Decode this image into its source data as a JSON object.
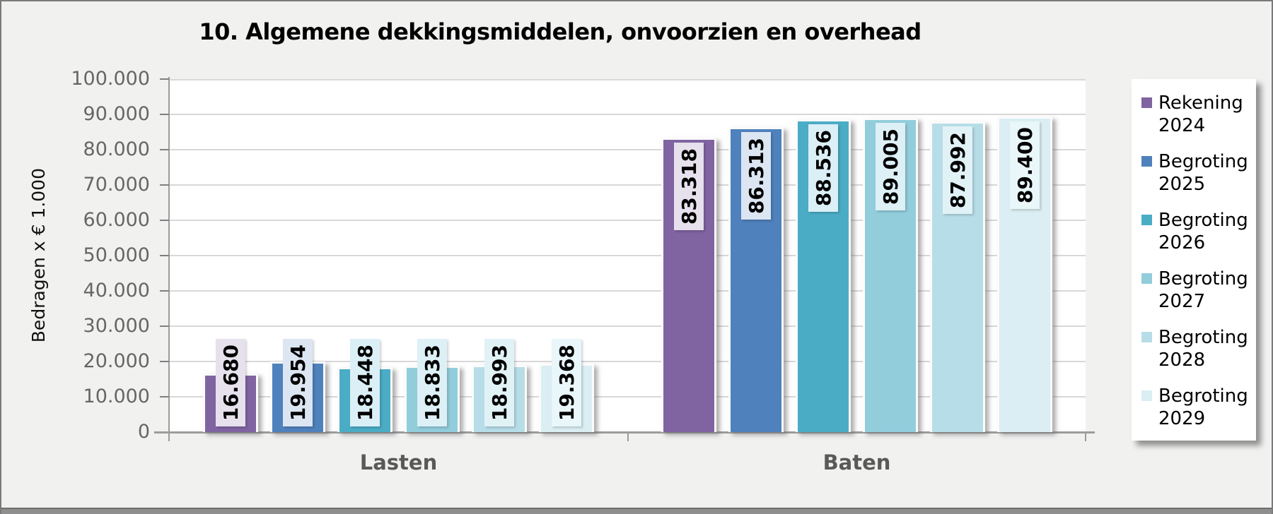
{
  "y_axis": {
    "label": "Bedragen x € 1.000",
    "ticks": [
      "100.000",
      "90.000",
      "80.000",
      "70.000",
      "60.000",
      "50.000",
      "40.000",
      "30.000",
      "20.000",
      "10.000",
      "0"
    ]
  },
  "chart_data": {
    "type": "bar",
    "title": "10. Algemene dekkingsmiddelen, onvoorzien en overhead",
    "xlabel": "",
    "ylabel": "Bedragen x € 1.000",
    "ylim": [
      0,
      100000
    ],
    "grid": true,
    "legend_position": "right",
    "categories": [
      "Lasten",
      "Baten"
    ],
    "series": [
      {
        "name": "Rekening 2024",
        "color": "#8064A2",
        "label_bg": "#E6E1ED",
        "values": [
          16680,
          83318
        ],
        "labels": [
          "16.680",
          "83.318"
        ]
      },
      {
        "name": "Begroting 2025",
        "color": "#4F81BD",
        "label_bg": "#DCE6F2",
        "values": [
          19954,
          86313
        ],
        "labels": [
          "19.954",
          "86.313"
        ]
      },
      {
        "name": "Begroting 2026",
        "color": "#4BACC6",
        "label_bg": "#DBEFF6",
        "values": [
          18448,
          88536
        ],
        "labels": [
          "18.448",
          "88.536"
        ]
      },
      {
        "name": "Begroting 2027",
        "color": "#92CDDC",
        "label_bg": "#DDF0F6",
        "values": [
          18833,
          89005
        ],
        "labels": [
          "18.833",
          "89.005"
        ]
      },
      {
        "name": "Begroting 2028",
        "color": "#B7DEE8",
        "label_bg": "#E1F2F7",
        "values": [
          18993,
          87992
        ],
        "labels": [
          "18.993",
          "87.992"
        ]
      },
      {
        "name": "Begroting 2029",
        "color": "#DAEEF3",
        "label_bg": "#E9F6FA",
        "values": [
          19368,
          89400
        ],
        "labels": [
          "19.368",
          "89.400"
        ]
      }
    ]
  }
}
